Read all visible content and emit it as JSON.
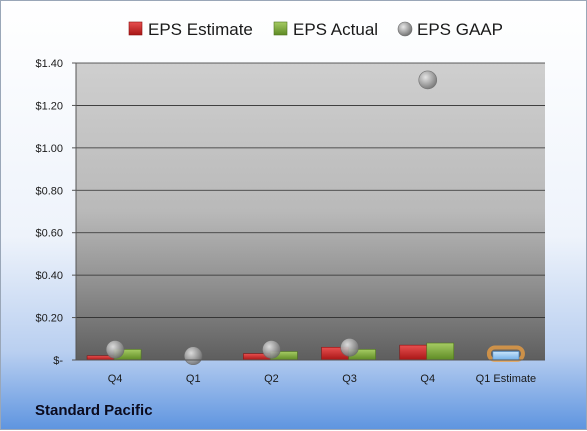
{
  "company": "Standard Pacific",
  "chart_data": {
    "type": "bar",
    "categories": [
      "Q4",
      "Q1",
      "Q2",
      "Q3",
      "Q4",
      "Q1 Estimate"
    ],
    "series": [
      {
        "name": "EPS Estimate",
        "kind": "bar",
        "color": "#d42525",
        "values": [
          0.02,
          null,
          0.03,
          0.06,
          0.07,
          null
        ]
      },
      {
        "name": "EPS Actual",
        "kind": "bar",
        "color": "#7faa3c",
        "values": [
          0.05,
          null,
          0.04,
          0.05,
          0.08,
          null
        ]
      },
      {
        "name": "EPS GAAP",
        "kind": "bubble",
        "color": "#9a9a9a",
        "values": [
          0.05,
          0.02,
          0.05,
          0.06,
          1.32,
          null
        ]
      },
      {
        "name": "",
        "kind": "estimate-bar",
        "color": "#8ec3f2",
        "values": [
          null,
          null,
          null,
          null,
          null,
          0.04
        ]
      }
    ],
    "y_ticks": [
      "$-",
      "$0.20",
      "$0.40",
      "$0.60",
      "$0.80",
      "$1.00",
      "$1.20",
      "$1.40"
    ],
    "ylim": [
      0,
      1.4
    ],
    "grid": true,
    "legend_position": "top"
  }
}
